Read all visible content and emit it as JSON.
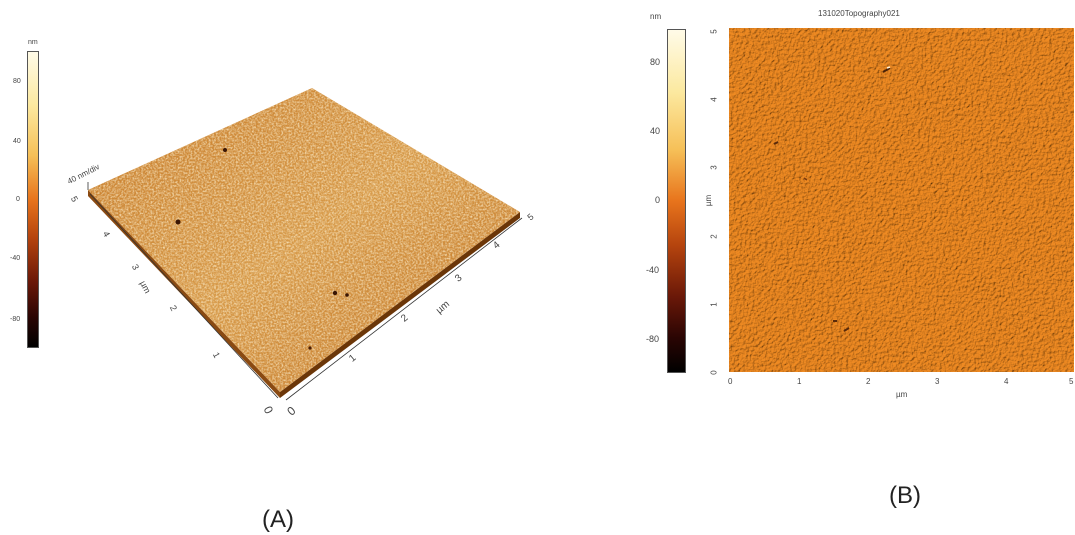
{
  "panel_a": {
    "caption": "(A)",
    "colorbar": {
      "unit": "nm",
      "ticks": [
        "80",
        "40",
        "0",
        "-40",
        "-80"
      ]
    },
    "z_scale_label": "40 nm/div",
    "axis_unit": "µm",
    "x_ticks": [
      "0",
      "1",
      "2",
      "3",
      "4",
      "5"
    ],
    "y_ticks": [
      "0",
      "1",
      "2",
      "3",
      "4",
      "5"
    ]
  },
  "panel_b": {
    "caption": "(B)",
    "title": "131020Topography021",
    "colorbar": {
      "unit": "nm",
      "ticks": [
        "80",
        "40",
        "0",
        "-40",
        "-80"
      ]
    },
    "x_label": "µm",
    "y_label": "µm",
    "x_ticks": [
      "0",
      "1",
      "2",
      "3",
      "4",
      "5"
    ],
    "y_ticks": [
      "0",
      "1",
      "2",
      "3",
      "4",
      "5"
    ]
  },
  "colors": {
    "colormap_top": "#fffbe8",
    "colormap_mid": "#e8741c",
    "colormap_bottom": "#000000",
    "surface": "#e8891f"
  }
}
